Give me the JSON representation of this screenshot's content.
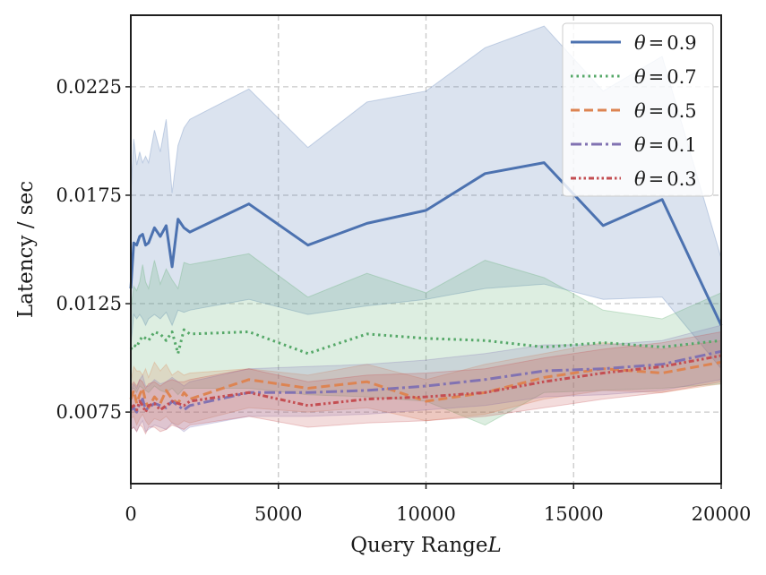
{
  "chart_data": {
    "type": "line",
    "title": "",
    "xlabel": "Query Range",
    "xlabel_var": "L",
    "ylabel": "Latency / sec",
    "xlim": [
      0,
      20000
    ],
    "ylim": [
      0.0042,
      0.0258
    ],
    "xticks": [
      0,
      5000,
      10000,
      15000,
      20000
    ],
    "xtick_labels": [
      "0",
      "5000",
      "10000",
      "15000",
      "20000"
    ],
    "yticks": [
      0.0075,
      0.0125,
      0.0175,
      0.0225
    ],
    "ytick_labels": [
      "0.0075",
      "0.0125",
      "0.0175",
      "0.0225"
    ],
    "grid": true,
    "legend_position": "top-right",
    "series": [
      {
        "name": "θ=0.9",
        "legend_theta": "θ",
        "legend_value": "0.9",
        "color": "#4c72b0",
        "dash": "solid",
        "x": [
          0,
          100,
          200,
          300,
          400,
          500,
          600,
          800,
          1000,
          1200,
          1400,
          1600,
          1800,
          2000,
          4000,
          6000,
          8000,
          10000,
          12000,
          14000,
          16000,
          18000,
          20000
        ],
        "y": [
          0.0132,
          0.0153,
          0.0152,
          0.0156,
          0.0157,
          0.0152,
          0.0153,
          0.016,
          0.0156,
          0.0161,
          0.0142,
          0.0164,
          0.016,
          0.0158,
          0.0171,
          0.0152,
          0.0162,
          0.0168,
          0.0185,
          0.019,
          0.0161,
          0.0173,
          0.0115
        ],
        "upper": [
          0.0175,
          0.0201,
          0.0189,
          0.0195,
          0.019,
          0.0193,
          0.019,
          0.0205,
          0.0195,
          0.021,
          0.0176,
          0.0198,
          0.0206,
          0.021,
          0.0224,
          0.0197,
          0.0218,
          0.0223,
          0.0243,
          0.0253,
          0.0223,
          0.0239,
          0.0146
        ],
        "lower": [
          0.0105,
          0.012,
          0.0118,
          0.012,
          0.0118,
          0.0115,
          0.0118,
          0.012,
          0.0118,
          0.0121,
          0.0115,
          0.0122,
          0.0121,
          0.0122,
          0.0127,
          0.012,
          0.0124,
          0.0127,
          0.0132,
          0.0134,
          0.0127,
          0.0128,
          0.0095
        ]
      },
      {
        "name": "θ=0.7",
        "legend_theta": "θ",
        "legend_value": "0.7",
        "color": "#55a868",
        "dash": "dotted",
        "x": [
          0,
          100,
          200,
          300,
          400,
          500,
          600,
          800,
          1000,
          1200,
          1400,
          1600,
          1800,
          2000,
          4000,
          6000,
          8000,
          10000,
          12000,
          14000,
          16000,
          18000,
          20000
        ],
        "y": [
          0.0104,
          0.0106,
          0.0105,
          0.0108,
          0.011,
          0.0109,
          0.0108,
          0.0112,
          0.0111,
          0.0108,
          0.0112,
          0.0102,
          0.0113,
          0.0111,
          0.0112,
          0.0102,
          0.0111,
          0.0109,
          0.0108,
          0.0105,
          0.0107,
          0.0105,
          0.0108
        ],
        "upper": [
          0.0122,
          0.0133,
          0.0131,
          0.0135,
          0.0143,
          0.0135,
          0.0132,
          0.0145,
          0.0134,
          0.0141,
          0.0136,
          0.0132,
          0.0144,
          0.0143,
          0.0148,
          0.0128,
          0.0139,
          0.013,
          0.0145,
          0.0137,
          0.0122,
          0.0118,
          0.013
        ],
        "lower": [
          0.0085,
          0.0086,
          0.0084,
          0.0087,
          0.0086,
          0.0085,
          0.0084,
          0.0087,
          0.0085,
          0.0084,
          0.0086,
          0.0083,
          0.0086,
          0.0086,
          0.0086,
          0.0083,
          0.0082,
          0.008,
          0.0069,
          0.0084,
          0.0085,
          0.0086,
          0.0088
        ]
      },
      {
        "name": "θ=0.5",
        "legend_theta": "θ",
        "legend_value": "0.5",
        "color": "#dd8452",
        "dash": "dashed",
        "x": [
          0,
          100,
          200,
          300,
          400,
          500,
          600,
          800,
          1000,
          1200,
          1400,
          1600,
          1800,
          2000,
          4000,
          6000,
          8000,
          10000,
          12000,
          14000,
          16000,
          18000,
          20000
        ],
        "y": [
          0.0081,
          0.0085,
          0.0079,
          0.0083,
          0.0086,
          0.008,
          0.0077,
          0.0082,
          0.0079,
          0.0085,
          0.0081,
          0.0079,
          0.0084,
          0.0081,
          0.009,
          0.0086,
          0.0089,
          0.008,
          0.0084,
          0.0091,
          0.0095,
          0.0093,
          0.0098
        ],
        "upper": [
          0.0089,
          0.0096,
          0.0094,
          0.0094,
          0.0092,
          0.0095,
          0.0091,
          0.0098,
          0.0094,
          0.0097,
          0.0092,
          0.0094,
          0.0092,
          0.0093,
          0.0095,
          0.0092,
          0.0097,
          0.009,
          0.0097,
          0.0102,
          0.0107,
          0.0104,
          0.0108
        ],
        "lower": [
          0.0072,
          0.0073,
          0.0069,
          0.0072,
          0.0074,
          0.0071,
          0.0069,
          0.0072,
          0.0071,
          0.0073,
          0.007,
          0.0069,
          0.0071,
          0.007,
          0.0077,
          0.0075,
          0.0077,
          0.0071,
          0.0074,
          0.0081,
          0.0085,
          0.0084,
          0.0088
        ]
      },
      {
        "name": "θ=0.1",
        "legend_theta": "θ",
        "legend_value": "0.1",
        "color": "#8172b2",
        "dash": "dashdot",
        "x": [
          0,
          100,
          200,
          300,
          400,
          500,
          600,
          800,
          1000,
          1200,
          1400,
          1600,
          1800,
          2000,
          4000,
          6000,
          8000,
          10000,
          12000,
          14000,
          16000,
          18000,
          20000
        ],
        "y": [
          0.0076,
          0.0077,
          0.0075,
          0.0079,
          0.0081,
          0.0076,
          0.0077,
          0.0079,
          0.0078,
          0.0077,
          0.008,
          0.0078,
          0.0076,
          0.0078,
          0.0084,
          0.0084,
          0.0085,
          0.0087,
          0.009,
          0.0094,
          0.0095,
          0.0097,
          0.0103
        ],
        "upper": [
          0.0085,
          0.0088,
          0.0086,
          0.009,
          0.0092,
          0.0087,
          0.0087,
          0.009,
          0.0088,
          0.0089,
          0.0091,
          0.0089,
          0.0087,
          0.0089,
          0.0095,
          0.0096,
          0.0097,
          0.0099,
          0.0102,
          0.0106,
          0.0106,
          0.0108,
          0.0115
        ],
        "lower": [
          0.0067,
          0.0068,
          0.0066,
          0.0069,
          0.0071,
          0.0066,
          0.0067,
          0.0069,
          0.0068,
          0.0067,
          0.007,
          0.0068,
          0.0066,
          0.0068,
          0.0073,
          0.0073,
          0.0074,
          0.0076,
          0.0078,
          0.0082,
          0.0083,
          0.0085,
          0.009
        ]
      },
      {
        "name": "θ=0.3",
        "legend_theta": "θ",
        "legend_value": "0.3",
        "color": "#c44e52",
        "dash": "dashdotdot",
        "x": [
          0,
          100,
          200,
          300,
          400,
          500,
          600,
          800,
          1000,
          1200,
          1400,
          1600,
          1800,
          2000,
          4000,
          6000,
          8000,
          10000,
          12000,
          14000,
          16000,
          18000,
          20000
        ],
        "y": [
          0.0077,
          0.0078,
          0.0076,
          0.008,
          0.0078,
          0.0075,
          0.0078,
          0.0079,
          0.0076,
          0.0078,
          0.008,
          0.0079,
          0.0078,
          0.008,
          0.0084,
          0.0078,
          0.0081,
          0.0082,
          0.0084,
          0.0089,
          0.0093,
          0.0096,
          0.0101
        ],
        "upper": [
          0.0087,
          0.0089,
          0.0087,
          0.009,
          0.0089,
          0.0086,
          0.0088,
          0.0089,
          0.0087,
          0.0089,
          0.009,
          0.0089,
          0.0089,
          0.009,
          0.0095,
          0.0089,
          0.0092,
          0.0093,
          0.0095,
          0.01,
          0.0104,
          0.0107,
          0.0112
        ],
        "lower": [
          0.0067,
          0.0068,
          0.0066,
          0.0069,
          0.0068,
          0.0065,
          0.0068,
          0.0068,
          0.0066,
          0.0067,
          0.0069,
          0.0068,
          0.0067,
          0.0069,
          0.0073,
          0.0068,
          0.007,
          0.0071,
          0.0073,
          0.0077,
          0.0081,
          0.0084,
          0.0089
        ]
      }
    ]
  }
}
